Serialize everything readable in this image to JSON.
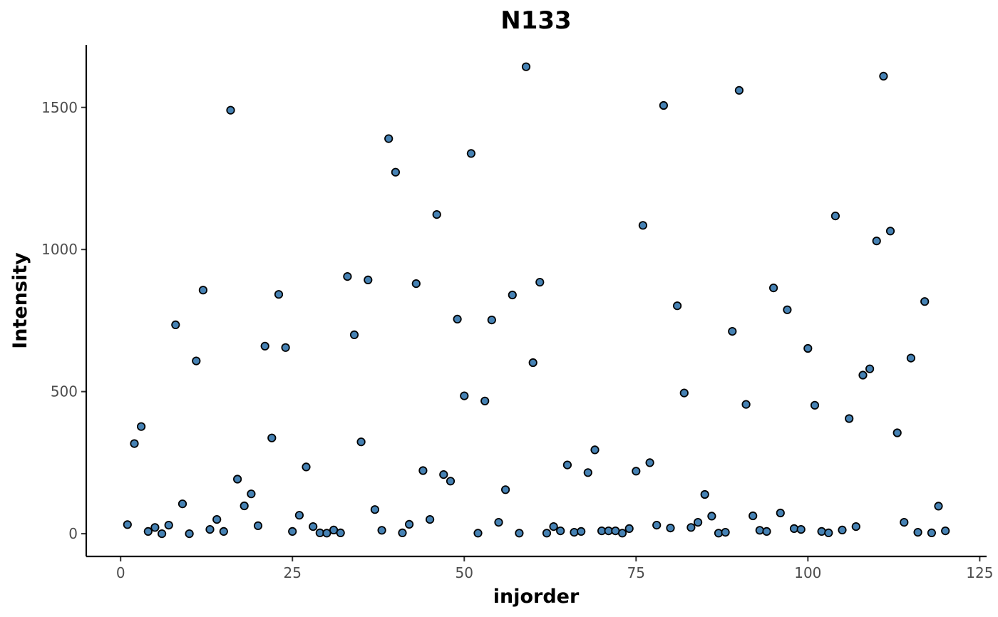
{
  "chart_data": {
    "type": "scatter",
    "title": "N133",
    "xlabel": "injorder",
    "ylabel": "Intensity",
    "xlim": [
      -5,
      126
    ],
    "ylim": [
      -80,
      1720
    ],
    "xticks": [
      0,
      25,
      50,
      75,
      100,
      125
    ],
    "yticks": [
      0,
      500,
      1000,
      1500
    ],
    "grid": false,
    "legend": "none",
    "point_fill": "#4682b4",
    "point_stroke": "#000000",
    "x": [
      1,
      2,
      3,
      4,
      5,
      6,
      7,
      8,
      9,
      10,
      11,
      12,
      13,
      14,
      15,
      16,
      17,
      18,
      19,
      20,
      21,
      22,
      23,
      24,
      25,
      26,
      27,
      28,
      29,
      30,
      31,
      32,
      33,
      34,
      35,
      36,
      37,
      38,
      39,
      40,
      41,
      42,
      43,
      44,
      45,
      46,
      47,
      48,
      49,
      50,
      51,
      52,
      53,
      54,
      55,
      56,
      57,
      58,
      59,
      60,
      61,
      62,
      63,
      64,
      65,
      66,
      67,
      68,
      69,
      70,
      71,
      72,
      73,
      74,
      75,
      76,
      77,
      78,
      79,
      80,
      81,
      82,
      83,
      84,
      85,
      86,
      87,
      88,
      89,
      90,
      91,
      92,
      93,
      94,
      95,
      96,
      97,
      98,
      99,
      100,
      101,
      102,
      103,
      104,
      105,
      106,
      107,
      108,
      109,
      110,
      111,
      112,
      113,
      114,
      115,
      116,
      117,
      118,
      119,
      120
    ],
    "y": [
      32,
      317,
      377,
      8,
      22,
      0,
      30,
      735,
      105,
      0,
      608,
      857,
      15,
      50,
      8,
      1490,
      192,
      98,
      140,
      28,
      660,
      337,
      842,
      655,
      8,
      65,
      235,
      25,
      3,
      2,
      13,
      3,
      905,
      700,
      323,
      893,
      85,
      12,
      1390,
      1272,
      3,
      33,
      880,
      222,
      50,
      1123,
      208,
      185,
      755,
      485,
      1338,
      2,
      467,
      752,
      40,
      155,
      840,
      2,
      1643,
      602,
      885,
      2,
      25,
      10,
      242,
      5,
      8,
      215,
      295,
      10,
      10,
      10,
      2,
      18,
      220,
      1085,
      250,
      30,
      1507,
      20,
      802,
      495,
      22,
      40,
      138,
      62,
      2,
      5,
      712,
      1560,
      455,
      63,
      12,
      8,
      865,
      73,
      788,
      18,
      15,
      652,
      452,
      8,
      3,
      1118,
      13,
      405,
      25,
      558,
      580,
      1030,
      1610,
      1065,
      355,
      40,
      618,
      5,
      817,
      3,
      97,
      10
    ]
  }
}
